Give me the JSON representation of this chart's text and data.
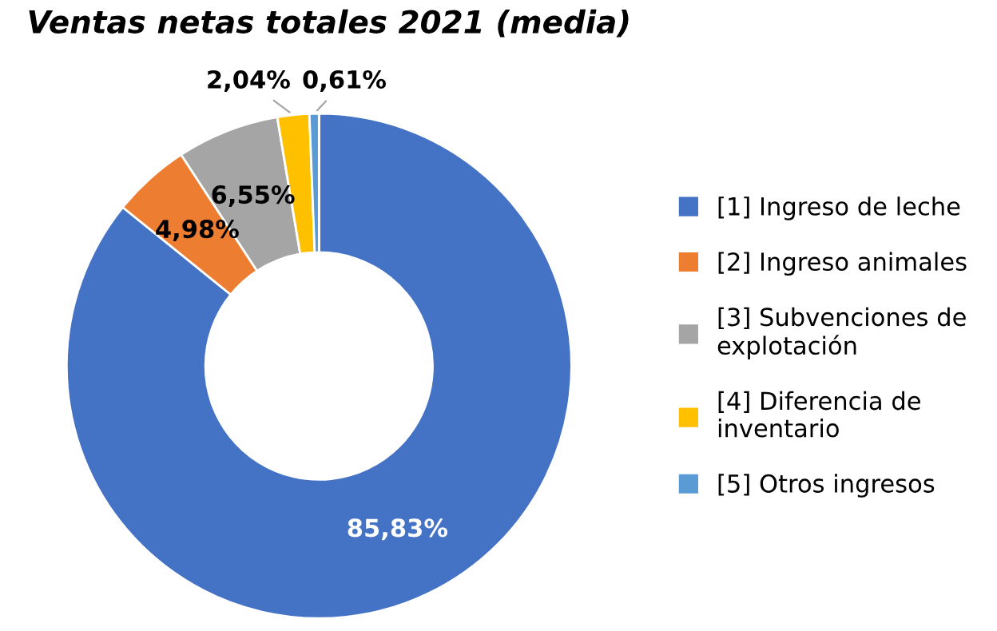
{
  "chart_data": {
    "type": "donut",
    "title": "Ventas netas totales 2021 (media)",
    "categories": [
      "[1] Ingreso de leche",
      "[2] Ingreso animales",
      "[3] Subvenciones de\nexplotación",
      "[4] Diferencia de\ninventario",
      "[5] Otros ingresos"
    ],
    "values": [
      85.83,
      4.98,
      6.55,
      2.04,
      0.61
    ],
    "value_labels": [
      "85,83%",
      "4,98%",
      "6,55%",
      "2,04%",
      "0,61%"
    ],
    "colors": [
      "#4472c4",
      "#ed7d31",
      "#a5a5a5",
      "#ffc000",
      "#5b9bd5"
    ],
    "legend": "right"
  }
}
